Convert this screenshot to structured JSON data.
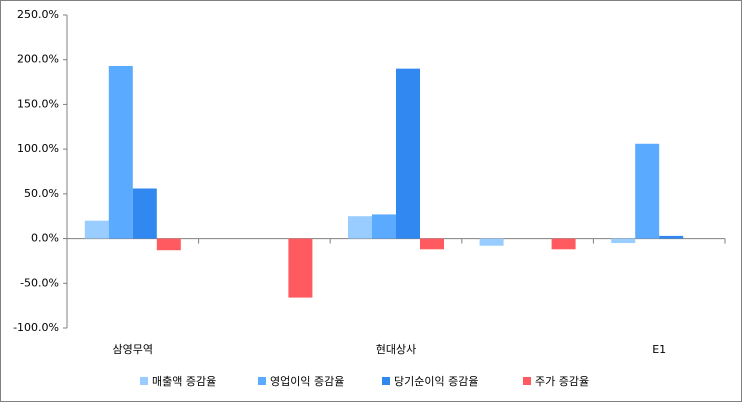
{
  "chart_data": {
    "type": "bar",
    "categories": [
      "삼영무역",
      null,
      "현대상사",
      null,
      "E1"
    ],
    "series": [
      {
        "name": "매출액 증감율",
        "color": "#99ccff",
        "values": [
          20,
          null,
          25,
          -8,
          -5
        ]
      },
      {
        "name": "영업이익 증감율",
        "color": "#5aabff",
        "values": [
          193,
          null,
          27,
          null,
          106
        ]
      },
      {
        "name": "당기순이익 증감율",
        "color": "#3088f0",
        "values": [
          56,
          null,
          190,
          null,
          3
        ]
      },
      {
        "name": "주가 증감율",
        "color": "#ff5a5f",
        "values": [
          -13,
          -66,
          -12,
          -12,
          null
        ]
      }
    ],
    "ylim": [
      -100,
      250
    ],
    "yticks": [
      {
        "value": -100,
        "label": "-100.0%"
      },
      {
        "value": -50,
        "label": "-50.0%"
      },
      {
        "value": 0,
        "label": "0.0%"
      },
      {
        "value": 50,
        "label": "50.0%"
      },
      {
        "value": 100,
        "label": "100.0%"
      },
      {
        "value": 150,
        "label": "150.0%"
      },
      {
        "value": 200,
        "label": "200.0%"
      },
      {
        "value": 250,
        "label": "250.0%"
      }
    ],
    "legend": "bottom"
  }
}
